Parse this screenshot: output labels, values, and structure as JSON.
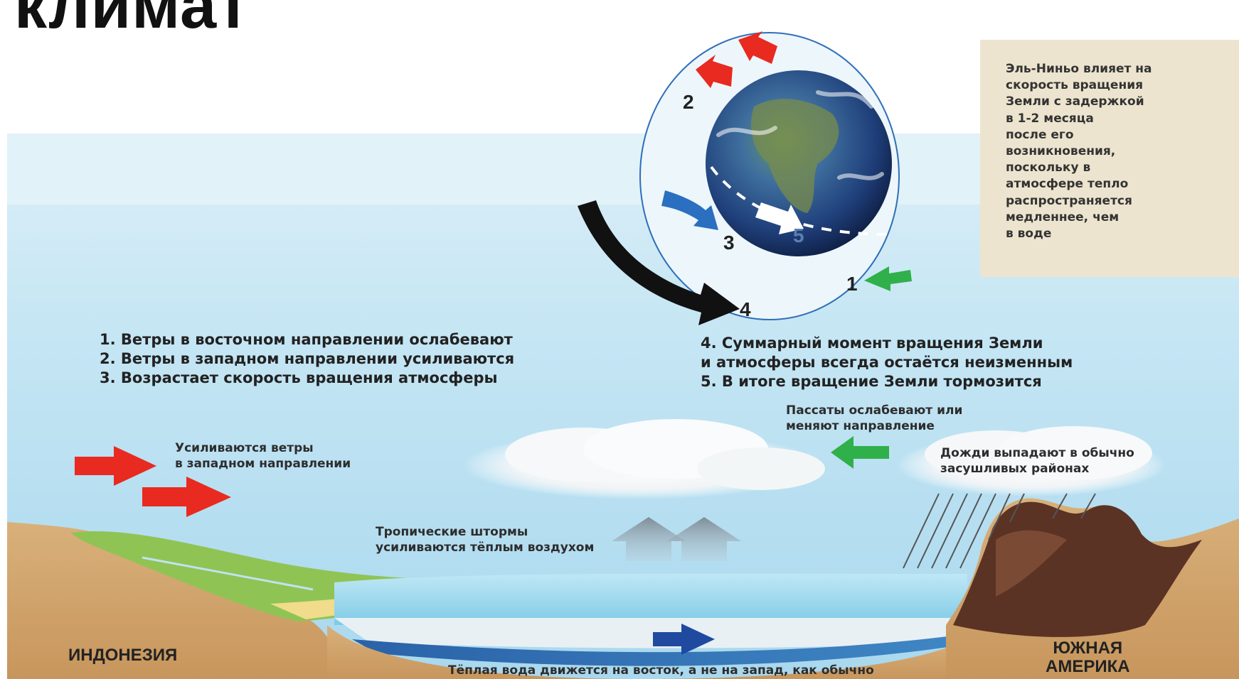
{
  "title": "климат",
  "sidenote": "Эль-Ниньо влияет на\nскорость вращения\nЗемли с задержкой\nв 1-2 месяца\nпосле его\nвозникновения,\nпоскольку в\nатмосфере тепло\nраспространяется\nмедленнее, чем\nв воде",
  "markers": [
    "1",
    "2",
    "3",
    "4",
    "5"
  ],
  "list_left": [
    "1. Ветры в восточном направлении ослабевают",
    "2. Ветры в западном направлении усиливаются",
    "3. Возрастает скорость вращения атмосферы"
  ],
  "list_right": [
    "4. Суммарный момент вращения Земли",
    "и атмосферы всегда остаётся неизменным",
    "5. В итоге вращение Земли тормозится"
  ],
  "labels": {
    "west_winds": "Усиливаются ветры\nв западном направлении",
    "trade_winds": "Пассаты ослабевают или\nменяют направление",
    "rains": "Дожди выпадают в обычно\nзасушливых районах",
    "storms": "Тропические штормы\nусиливаются тёплым воздухом",
    "warm_water": "Тёплая вода движется на восток, а не на запад, как обычно"
  },
  "regions": {
    "indonesia": "ИНДОНЕЗИЯ",
    "south_america": "ЮЖНАЯ\nАМЕРИКА"
  },
  "colors": {
    "red_arrow": "#e82a20",
    "green_arrow": "#2fb04a",
    "blue_arrow": "#2a6fc0",
    "black_arrow": "#111111",
    "sidenote_bg": "#ede4cf"
  }
}
